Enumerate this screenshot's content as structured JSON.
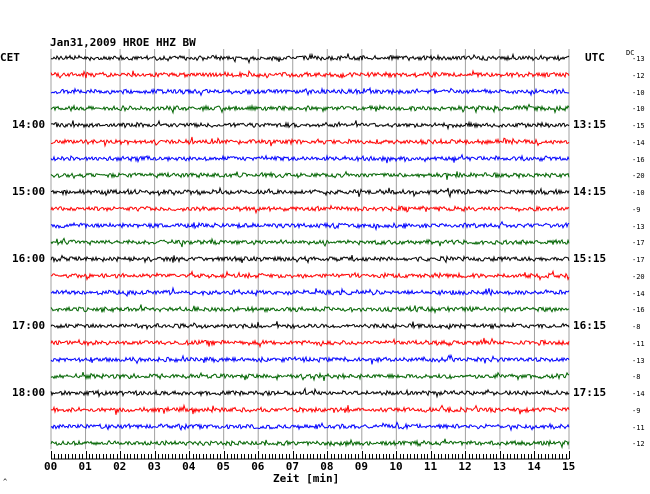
{
  "chart_data": {
    "type": "line",
    "title": "Jan31,2009   HROE HHZ BW",
    "left_axis_label": "CET",
    "right_axis_label": "UTC",
    "dc_label": "DC",
    "xlabel": "Zeit [min]",
    "xlim": [
      0,
      15
    ],
    "x_ticks": [
      "00",
      "01",
      "02",
      "03",
      "04",
      "05",
      "06",
      "07",
      "08",
      "09",
      "10",
      "11",
      "12",
      "13",
      "14",
      "15"
    ],
    "left_time_labels": [
      "14:00",
      "15:00",
      "16:00",
      "17:00",
      "18:00"
    ],
    "right_time_labels": [
      "13:15",
      "14:15",
      "15:15",
      "16:15",
      "17:15"
    ],
    "trace_colors": [
      "#000000",
      "#ff0000",
      "#0000ff",
      "#006400"
    ],
    "dc_offsets": [
      -13,
      -12,
      -10,
      -10,
      -15,
      -14,
      -16,
      -20,
      -10,
      -9,
      -13,
      -17,
      -17,
      -20,
      -14,
      -16,
      -8,
      -11,
      -13,
      -8,
      -14,
      -9,
      -11,
      -12
    ],
    "corner_mark": "^"
  }
}
